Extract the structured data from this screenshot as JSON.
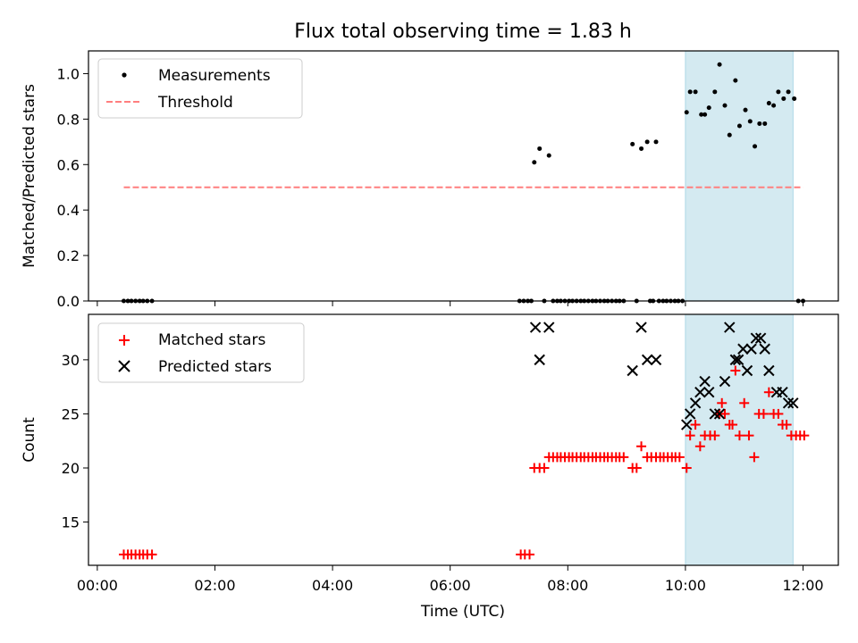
{
  "chart_data": {
    "title": "Flux total observing time = 1.83 h",
    "xlabel": "Time (UTC)",
    "x_unit": "hours since 00:00 UTC",
    "xlim": [
      -0.15,
      12.6
    ],
    "x_ticks": [
      0,
      2,
      4,
      6,
      8,
      10,
      12
    ],
    "x_tick_labels": [
      "00:00",
      "02:00",
      "04:00",
      "06:00",
      "08:00",
      "10:00",
      "12:00"
    ],
    "highlight_span": {
      "start": 10.0,
      "end": 11.83,
      "color": "#d4eaf1"
    },
    "panels": [
      {
        "type": "scatter",
        "ylabel": "Matched/Predicted stars",
        "ylim": [
          0,
          1.1
        ],
        "y_ticks": [
          0.0,
          0.2,
          0.4,
          0.6,
          0.8,
          1.0
        ],
        "y_tick_labels": [
          "0.0",
          "0.2",
          "0.4",
          "0.6",
          "0.8",
          "1.0"
        ],
        "legend": {
          "position": "upper-left",
          "entries": [
            "Measurements",
            "Threshold"
          ]
        },
        "series": [
          {
            "name": "Measurements",
            "marker": "dot",
            "color": "#000000",
            "points": [
              [
                0.45,
                0
              ],
              [
                0.52,
                0
              ],
              [
                0.58,
                0
              ],
              [
                0.65,
                0
              ],
              [
                0.72,
                0
              ],
              [
                0.78,
                0
              ],
              [
                0.85,
                0
              ],
              [
                0.93,
                0
              ],
              [
                7.18,
                0
              ],
              [
                7.25,
                0
              ],
              [
                7.32,
                0
              ],
              [
                7.38,
                0
              ],
              [
                7.43,
                0.61
              ],
              [
                7.52,
                0.67
              ],
              [
                7.68,
                0.64
              ],
              [
                7.6,
                0
              ],
              [
                7.75,
                0
              ],
              [
                7.82,
                0
              ],
              [
                7.88,
                0
              ],
              [
                7.95,
                0
              ],
              [
                8.02,
                0
              ],
              [
                8.08,
                0
              ],
              [
                8.15,
                0
              ],
              [
                8.22,
                0
              ],
              [
                8.28,
                0
              ],
              [
                8.35,
                0
              ],
              [
                8.42,
                0
              ],
              [
                8.48,
                0
              ],
              [
                8.55,
                0
              ],
              [
                8.62,
                0
              ],
              [
                8.68,
                0
              ],
              [
                8.75,
                0
              ],
              [
                8.82,
                0
              ],
              [
                8.88,
                0
              ],
              [
                8.95,
                0
              ],
              [
                9.1,
                0.69
              ],
              [
                9.17,
                0
              ],
              [
                9.25,
                0.67
              ],
              [
                9.35,
                0.7
              ],
              [
                9.4,
                0
              ],
              [
                9.45,
                0
              ],
              [
                9.5,
                0.7
              ],
              [
                9.55,
                0
              ],
              [
                9.62,
                0
              ],
              [
                9.68,
                0
              ],
              [
                9.75,
                0
              ],
              [
                9.82,
                0
              ],
              [
                9.88,
                0
              ],
              [
                9.95,
                0
              ],
              [
                10.02,
                0.83
              ],
              [
                10.08,
                0.92
              ],
              [
                10.17,
                0.92
              ],
              [
                10.27,
                0.82
              ],
              [
                10.33,
                0.82
              ],
              [
                10.4,
                0.85
              ],
              [
                10.5,
                0.92
              ],
              [
                10.58,
                1.04
              ],
              [
                10.67,
                0.86
              ],
              [
                10.75,
                0.73
              ],
              [
                10.85,
                0.97
              ],
              [
                10.92,
                0.77
              ],
              [
                11.02,
                0.84
              ],
              [
                11.1,
                0.79
              ],
              [
                11.18,
                0.68
              ],
              [
                11.26,
                0.78
              ],
              [
                11.35,
                0.78
              ],
              [
                11.42,
                0.87
              ],
              [
                11.5,
                0.86
              ],
              [
                11.58,
                0.92
              ],
              [
                11.67,
                0.89
              ],
              [
                11.75,
                0.92
              ],
              [
                11.85,
                0.89
              ],
              [
                11.92,
                0
              ],
              [
                12.0,
                0
              ]
            ]
          },
          {
            "name": "Threshold",
            "type": "line",
            "style": "dashed",
            "color": "#ff7f7f",
            "x": [
              0.45,
              12.0
            ],
            "y": [
              0.5,
              0.5
            ]
          }
        ]
      },
      {
        "type": "scatter",
        "ylabel": "Count",
        "ylim": [
          11,
          34.2
        ],
        "y_ticks": [
          15,
          20,
          25,
          30
        ],
        "y_tick_labels": [
          "15",
          "20",
          "25",
          "30"
        ],
        "legend": {
          "position": "upper-left",
          "entries": [
            "Matched stars",
            "Predicted stars"
          ]
        },
        "series": [
          {
            "name": "Matched stars",
            "marker": "plus",
            "color": "#ff0000",
            "points": [
              [
                0.45,
                12
              ],
              [
                0.52,
                12
              ],
              [
                0.58,
                12
              ],
              [
                0.65,
                12
              ],
              [
                0.72,
                12
              ],
              [
                0.78,
                12
              ],
              [
                0.85,
                12
              ],
              [
                0.93,
                12
              ],
              [
                7.2,
                12
              ],
              [
                7.27,
                12
              ],
              [
                7.35,
                12
              ],
              [
                7.43,
                20
              ],
              [
                7.52,
                20
              ],
              [
                7.6,
                20
              ],
              [
                7.68,
                21
              ],
              [
                7.75,
                21
              ],
              [
                7.82,
                21
              ],
              [
                7.88,
                21
              ],
              [
                7.95,
                21
              ],
              [
                8.02,
                21
              ],
              [
                8.08,
                21
              ],
              [
                8.15,
                21
              ],
              [
                8.22,
                21
              ],
              [
                8.28,
                21
              ],
              [
                8.35,
                21
              ],
              [
                8.42,
                21
              ],
              [
                8.48,
                21
              ],
              [
                8.55,
                21
              ],
              [
                8.62,
                21
              ],
              [
                8.68,
                21
              ],
              [
                8.75,
                21
              ],
              [
                8.82,
                21
              ],
              [
                8.88,
                21
              ],
              [
                8.95,
                21
              ],
              [
                9.1,
                20
              ],
              [
                9.17,
                20
              ],
              [
                9.25,
                22
              ],
              [
                9.35,
                21
              ],
              [
                9.42,
                21
              ],
              [
                9.5,
                21
              ],
              [
                9.57,
                21
              ],
              [
                9.63,
                21
              ],
              [
                9.7,
                21
              ],
              [
                9.77,
                21
              ],
              [
                9.83,
                21
              ],
              [
                9.9,
                21
              ],
              [
                10.02,
                20
              ],
              [
                10.08,
                23
              ],
              [
                10.17,
                24
              ],
              [
                10.25,
                22
              ],
              [
                10.33,
                23
              ],
              [
                10.42,
                23
              ],
              [
                10.5,
                23
              ],
              [
                10.58,
                25
              ],
              [
                10.62,
                26
              ],
              [
                10.67,
                25
              ],
              [
                10.75,
                24
              ],
              [
                10.8,
                24
              ],
              [
                10.85,
                29
              ],
              [
                10.92,
                23
              ],
              [
                11.0,
                26
              ],
              [
                11.08,
                23
              ],
              [
                11.17,
                21
              ],
              [
                11.25,
                25
              ],
              [
                11.33,
                25
              ],
              [
                11.42,
                27
              ],
              [
                11.5,
                25
              ],
              [
                11.58,
                25
              ],
              [
                11.65,
                24
              ],
              [
                11.72,
                24
              ],
              [
                11.8,
                23
              ],
              [
                11.88,
                23
              ],
              [
                11.95,
                23
              ],
              [
                12.02,
                23
              ]
            ]
          },
          {
            "name": "Predicted stars",
            "marker": "x",
            "color": "#000000",
            "points": [
              [
                7.45,
                33
              ],
              [
                7.52,
                30
              ],
              [
                7.68,
                33
              ],
              [
                9.1,
                29
              ],
              [
                9.25,
                33
              ],
              [
                9.35,
                30
              ],
              [
                9.5,
                30
              ],
              [
                10.02,
                24
              ],
              [
                10.08,
                25
              ],
              [
                10.17,
                26
              ],
              [
                10.25,
                27
              ],
              [
                10.33,
                28
              ],
              [
                10.4,
                27
              ],
              [
                10.5,
                25
              ],
              [
                10.58,
                25
              ],
              [
                10.67,
                28
              ],
              [
                10.75,
                33
              ],
              [
                10.85,
                30
              ],
              [
                10.9,
                30
              ],
              [
                10.98,
                31
              ],
              [
                11.05,
                29
              ],
              [
                11.12,
                31
              ],
              [
                11.2,
                32
              ],
              [
                11.28,
                32
              ],
              [
                11.35,
                31
              ],
              [
                11.42,
                29
              ],
              [
                11.55,
                27
              ],
              [
                11.65,
                27
              ],
              [
                11.75,
                26
              ],
              [
                11.83,
                26
              ]
            ]
          }
        ]
      }
    ]
  }
}
